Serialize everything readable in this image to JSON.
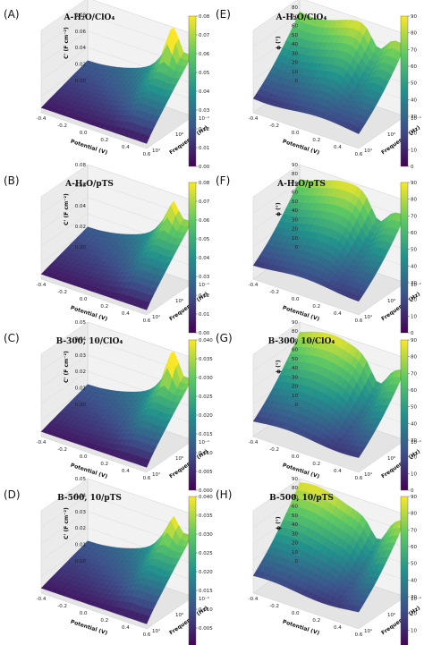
{
  "chart_data": [
    {
      "panel": "(A)",
      "title": "A-H2O/ClO4",
      "type": "surface",
      "x_label": "Potential (V)",
      "y_label": "Frequency (Hz)",
      "z_label": "C' (F cm⁻²)",
      "x_ticks": [
        "-0.4",
        "-0.2",
        "0.0",
        "0.2",
        "0.4",
        "0.6"
      ],
      "y_ticks": [
        "10⁻¹",
        "10⁰",
        "10¹"
      ],
      "z_ticks": [
        "0.00",
        "0.02",
        "0.04",
        "0.06",
        "0.08",
        "0.10"
      ],
      "colorbar_ticks": [
        "0.00",
        "0.01",
        "0.02",
        "0.03",
        "0.04",
        "0.05",
        "0.06",
        "0.07",
        "0.08"
      ],
      "colorbar_range": [
        0,
        0.08
      ],
      "peak": 1.0
    },
    {
      "panel": "(B)",
      "title": "A-H2O/pTS",
      "type": "surface",
      "x_label": "Potential (V)",
      "y_label": "Frequency (Hz)",
      "z_label": "C' (F cm⁻²)",
      "x_ticks": [
        "-0.4",
        "-0.2",
        "0.0",
        "0.2",
        "0.4",
        "0.6"
      ],
      "y_ticks": [
        "10⁻¹",
        "10⁰",
        "10¹"
      ],
      "z_ticks": [
        "0.00",
        "0.02",
        "0.04",
        "0.06",
        "0.08"
      ],
      "colorbar_ticks": [
        "0.00",
        "0.01",
        "0.02",
        "0.03",
        "0.04",
        "0.05",
        "0.06",
        "0.07",
        "0.08"
      ],
      "colorbar_range": [
        0,
        0.08
      ],
      "peak": 0.55
    },
    {
      "panel": "(C)",
      "title": "B-300, 10/ClO4",
      "type": "surface",
      "x_label": "Potential (V)",
      "y_label": "Frequency (Hz)",
      "z_label": "C' (F cm⁻²)",
      "x_ticks": [
        "-0.4",
        "-0.2",
        "0.0",
        "0.2",
        "0.4",
        "0.6"
      ],
      "y_ticks": [
        "10⁻¹",
        "10⁰",
        "10¹"
      ],
      "z_ticks": [
        "0.00",
        "0.01",
        "0.02",
        "0.03",
        "0.04",
        "0.05"
      ],
      "colorbar_ticks": [
        "0.000",
        "0.005",
        "0.010",
        "0.015",
        "0.020",
        "0.025",
        "0.030",
        "0.035",
        "0.040"
      ],
      "colorbar_range": [
        0,
        0.04
      ],
      "peak": 1.0
    },
    {
      "panel": "(D)",
      "title": "B-500, 10/pTS",
      "type": "surface",
      "x_label": "Potential (V)",
      "y_label": "Frequency (Hz)",
      "z_label": "C' (F cm⁻²)",
      "x_ticks": [
        "-0.4",
        "-0.2",
        "0.0",
        "0.2",
        "0.4",
        "0.6"
      ],
      "y_ticks": [
        "10⁻¹",
        "10⁰",
        "10¹"
      ],
      "z_ticks": [
        "0.00",
        "0.01",
        "0.02",
        "0.03",
        "0.04",
        "0.05"
      ],
      "colorbar_ticks": [
        "0.000",
        "0.005",
        "0.010",
        "0.015",
        "0.020",
        "0.025",
        "0.030",
        "0.035",
        "0.040"
      ],
      "colorbar_range": [
        0,
        0.04
      ],
      "peak": 0.5
    },
    {
      "panel": "(E)",
      "title": "A-H2O/ClO4",
      "type": "surface",
      "x_label": "Potential (V)",
      "y_label": "Frequency (Hz)",
      "z_label": "ϕ (°)",
      "x_ticks": [
        "-0.4",
        "-0.2",
        "0.0",
        "0.2",
        "0.4",
        "0.6"
      ],
      "y_ticks": [
        "10⁻¹",
        "10⁰",
        "10¹"
      ],
      "z_ticks": [
        "0",
        "10",
        "20",
        "30",
        "40",
        "50",
        "60",
        "70",
        "80",
        "90"
      ],
      "colorbar_ticks": [
        "0",
        "10",
        "20",
        "30",
        "40",
        "50",
        "60",
        "70",
        "80",
        "90"
      ],
      "colorbar_range": [
        0,
        90
      ],
      "peak": 0.0
    },
    {
      "panel": "(F)",
      "title": "A-H2O/pTS",
      "type": "surface",
      "x_label": "Potential (V)",
      "y_label": "Frequency (Hz)",
      "z_label": "ϕ (°)",
      "x_ticks": [
        "-0.4",
        "-0.2",
        "0.0",
        "0.2",
        "0.4",
        "0.6"
      ],
      "y_ticks": [
        "10⁻¹",
        "10⁰",
        "10¹"
      ],
      "z_ticks": [
        "0",
        "10",
        "20",
        "30",
        "40",
        "50",
        "60",
        "70",
        "80",
        "90"
      ],
      "colorbar_ticks": [
        "0",
        "10",
        "20",
        "30",
        "40",
        "50",
        "60",
        "70",
        "80",
        "90"
      ],
      "colorbar_range": [
        0,
        90
      ],
      "peak": 0.0
    },
    {
      "panel": "(G)",
      "title": "B-300, 10/ClO4",
      "type": "surface",
      "x_label": "Potential (V)",
      "y_label": "Frequency (Hz)",
      "z_label": "ϕ (°)",
      "x_ticks": [
        "-0.4",
        "-0.2",
        "0.0",
        "0.2",
        "0.4",
        "0.6"
      ],
      "y_ticks": [
        "10⁻¹",
        "10⁰",
        "10¹"
      ],
      "z_ticks": [
        "0",
        "10",
        "20",
        "30",
        "40",
        "50",
        "60",
        "70",
        "80",
        "90"
      ],
      "colorbar_ticks": [
        "0",
        "10",
        "20",
        "30",
        "40",
        "50",
        "60",
        "70",
        "80",
        "90"
      ],
      "colorbar_range": [
        0,
        90
      ],
      "peak": 0.0
    },
    {
      "panel": "(H)",
      "title": "B-500, 10/pTS",
      "type": "surface",
      "x_label": "Potential (V)",
      "y_label": "Frequency (Hz)",
      "z_label": "ϕ (°)",
      "x_ticks": [
        "-0.4",
        "-0.2",
        "0.0",
        "0.2",
        "0.4",
        "0.6"
      ],
      "y_ticks": [
        "10⁻¹",
        "10⁰",
        "10¹"
      ],
      "z_ticks": [
        "0",
        "10",
        "20",
        "30",
        "40",
        "50",
        "60",
        "70",
        "80",
        "90"
      ],
      "colorbar_ticks": [
        "0",
        "10",
        "20",
        "30",
        "40",
        "50",
        "60",
        "70",
        "80",
        "90"
      ],
      "colorbar_range": [
        0,
        90
      ],
      "peak": 0.0
    }
  ],
  "colormap": [
    "#440154",
    "#3b528b",
    "#21918c",
    "#5ec962",
    "#fde725"
  ]
}
